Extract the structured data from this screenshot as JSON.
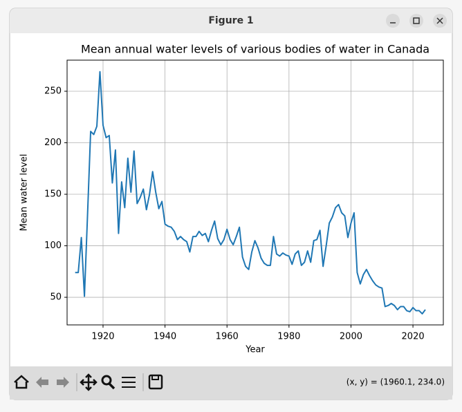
{
  "window": {
    "title": "Figure 1",
    "status": "(x, y) = (1960.1, 234.0)"
  },
  "chart_data": {
    "type": "line",
    "title": "Mean annual water levels of various bodies of water in Canada",
    "xlabel": "Year",
    "ylabel": "Mean water level",
    "x": [
      1911,
      1912,
      1913,
      1914,
      1915,
      1916,
      1917,
      1918,
      1919,
      1920,
      1921,
      1922,
      1923,
      1924,
      1925,
      1926,
      1927,
      1928,
      1929,
      1930,
      1931,
      1932,
      1933,
      1934,
      1935,
      1936,
      1937,
      1938,
      1939,
      1940,
      1941,
      1942,
      1943,
      1944,
      1945,
      1946,
      1947,
      1948,
      1949,
      1950,
      1951,
      1952,
      1953,
      1954,
      1955,
      1956,
      1957,
      1958,
      1959,
      1960,
      1961,
      1962,
      1963,
      1964,
      1965,
      1966,
      1967,
      1968,
      1969,
      1970,
      1971,
      1972,
      1973,
      1974,
      1975,
      1976,
      1977,
      1978,
      1979,
      1980,
      1981,
      1982,
      1983,
      1984,
      1985,
      1986,
      1987,
      1988,
      1989,
      1990,
      1991,
      1992,
      1993,
      1994,
      1995,
      1996,
      1997,
      1998,
      1999,
      2000,
      2001,
      2002,
      2003,
      2004,
      2005,
      2006,
      2007,
      2008,
      2009,
      2010,
      2011,
      2012,
      2013,
      2014,
      2015,
      2016,
      2017,
      2018,
      2019,
      2020,
      2021,
      2022,
      2023,
      2024
    ],
    "values": [
      74,
      74,
      108,
      51,
      130,
      211,
      208,
      216,
      269,
      217,
      205,
      207,
      161,
      193,
      112,
      162,
      137,
      185,
      152,
      192,
      141,
      147,
      155,
      135,
      150,
      172,
      152,
      136,
      143,
      121,
      119,
      118,
      114,
      106,
      109,
      106,
      104,
      94,
      109,
      109,
      114,
      110,
      112,
      104,
      115,
      124,
      107,
      101,
      106,
      116,
      106,
      101,
      109,
      118,
      89,
      80,
      77,
      94,
      105,
      98,
      88,
      83,
      81,
      81,
      109,
      92,
      90,
      93,
      91,
      90,
      82,
      92,
      95,
      81,
      84,
      95,
      84,
      105,
      106,
      115,
      80,
      100,
      122,
      128,
      137,
      140,
      132,
      129,
      108,
      122,
      132,
      74,
      63,
      72,
      77,
      71,
      66,
      62,
      60,
      59,
      41,
      42,
      44,
      42,
      38,
      41,
      41,
      37,
      36,
      40,
      37,
      37,
      34,
      38
    ],
    "color": "#1f77b4",
    "xlim": [
      1908.4,
      2029.8
    ],
    "ylim": [
      23.2,
      280.2
    ],
    "xticks": [
      1920,
      1940,
      1960,
      1980,
      2000,
      2020
    ],
    "yticks": [
      50,
      100,
      150,
      200,
      250
    ],
    "grid": true
  }
}
